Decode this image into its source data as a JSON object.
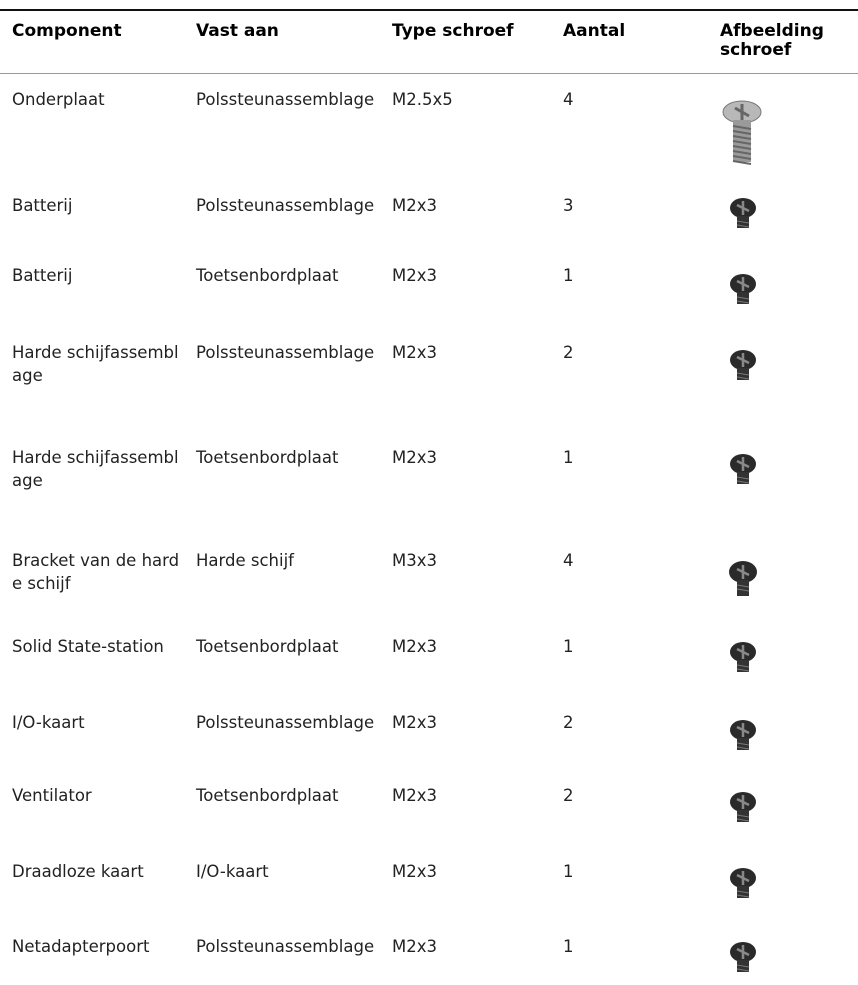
{
  "table": {
    "header": [
      "Component",
      "Vast aan",
      "Type schroef",
      "Aantal",
      "Afbeelding schroef"
    ],
    "rows": [
      [
        "Onderplaat",
        "Polssteunassemblage",
        "M2.5x5",
        "4"
      ],
      [
        "Batterij",
        "Polssteunassemblage",
        "M2x3",
        "3"
      ],
      [
        "Batterij",
        "Toetsenbordplaat",
        "M2x3",
        "1"
      ],
      [
        "Harde schijfassemblage",
        "Polssteunassemblage",
        "M2x3",
        "2"
      ],
      [
        "Harde schijfassemblage",
        "Toetsenbordplaat",
        "M2x3",
        "1"
      ],
      [
        "Bracket van de harde schijf",
        "Harde schijf",
        "M3x3",
        "4"
      ],
      [
        "Solid State-station",
        "Toetsenbordplaat",
        "M2x3",
        "1"
      ],
      [
        "I/O-kaart",
        "Polssteunassemblage",
        "M2x3",
        "2"
      ],
      [
        "Ventilator",
        "Toetsenbordplaat",
        "M2x3",
        "2"
      ],
      [
        "Draadloze kaart",
        "I/O-kaart",
        "M2x3",
        "1"
      ],
      [
        "Netadapterpoort",
        "Polssteunassemblage",
        "M2x3",
        "1"
      ]
    ]
  }
}
